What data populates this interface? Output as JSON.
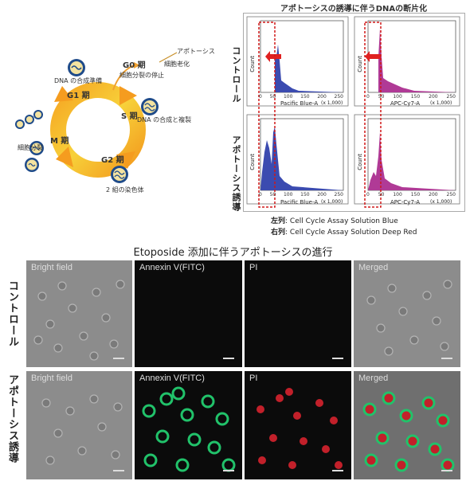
{
  "cell_cycle": {
    "g0": "G0 期",
    "g1": "G1 期",
    "s": "S 期",
    "g2": "G2 期",
    "m": "M 期",
    "apoptosis": "アポトーシス",
    "senescence": "細胞老化",
    "arrest": "細胞分裂の停止",
    "dna_prep": "DNA の合成準備",
    "dna_synth": "DNA の合成と複製",
    "chromosome_pairs": "2 組の染色体",
    "cell_division": "細胞分裂"
  },
  "histogram": {
    "title": "アポトーシスの誘導に伴うDNAの断片化",
    "row_labels": [
      "コントロール",
      "アポトーシス誘導"
    ],
    "y_label": "Count",
    "x_labels": [
      "Pacific Blue-A",
      "APC-Cy7-A"
    ],
    "x_unit": "(x 1,000)",
    "x_ticks": [
      "0",
      "50",
      "100",
      "150",
      "200",
      "250"
    ],
    "colors": {
      "blue": "#3b4bb0",
      "magenta": "#b03a96",
      "arrow": "#e02020",
      "dotted": "#d01818"
    }
  },
  "legend": {
    "left_key": "左列",
    "left_text": ": Cell Cycle Assay Solution Blue",
    "right_key": "右列",
    "right_text": ": Cell Cycle Assay Solution Deep Red"
  },
  "micro": {
    "title": "Etoposide 添加に伴うアポトーシスの進行",
    "row_labels": [
      "コントロール",
      "アポトーシス誘導"
    ],
    "columns": [
      "Bright field",
      "Annexin V(FITC)",
      "PI",
      "Merged"
    ]
  }
}
